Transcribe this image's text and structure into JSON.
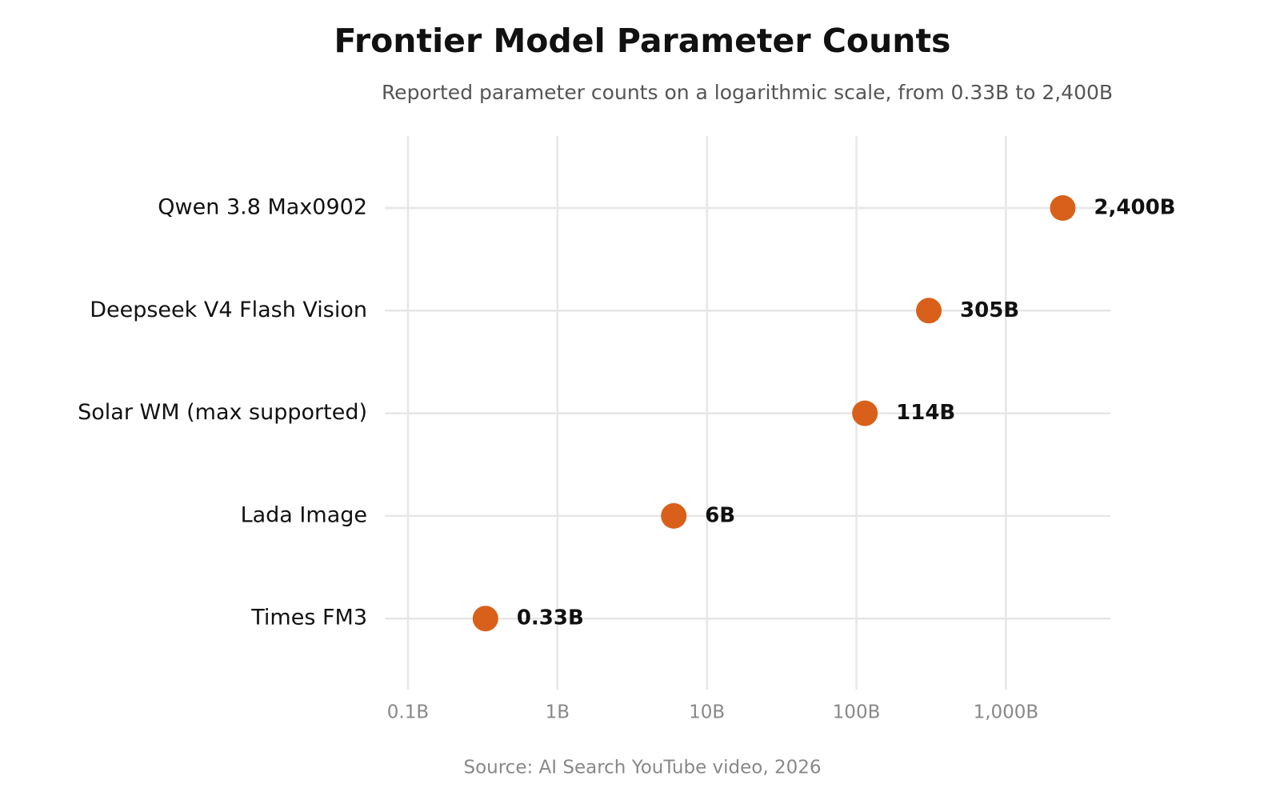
{
  "chart_data": {
    "type": "dot",
    "title": "Frontier Model Parameter Counts",
    "subtitle": "Reported parameter counts on a logarithmic scale, from 0.33B to 2,400B",
    "source": "Source: AI Search YouTube video, 2026",
    "categories": [
      "Qwen 3.8 Max0902",
      "Deepseek V4 Flash Vision",
      "Solar WM (max supported)",
      "Lada Image",
      "Times FM3"
    ],
    "values": [
      2400,
      305,
      114,
      6,
      0.33
    ],
    "value_labels": [
      "2,400B",
      "305B",
      "114B",
      "6B",
      "0.33B"
    ],
    "color": "#d9601a",
    "xscale": "log",
    "xlim": [
      0.07,
      5000
    ],
    "xticks": [
      {
        "value": 0.1,
        "label": "0.1B"
      },
      {
        "value": 1,
        "label": "1B"
      },
      {
        "value": 10,
        "label": "10B"
      },
      {
        "value": 100,
        "label": "100B"
      },
      {
        "value": 1000,
        "label": "1,000B"
      }
    ],
    "grid": true
  }
}
